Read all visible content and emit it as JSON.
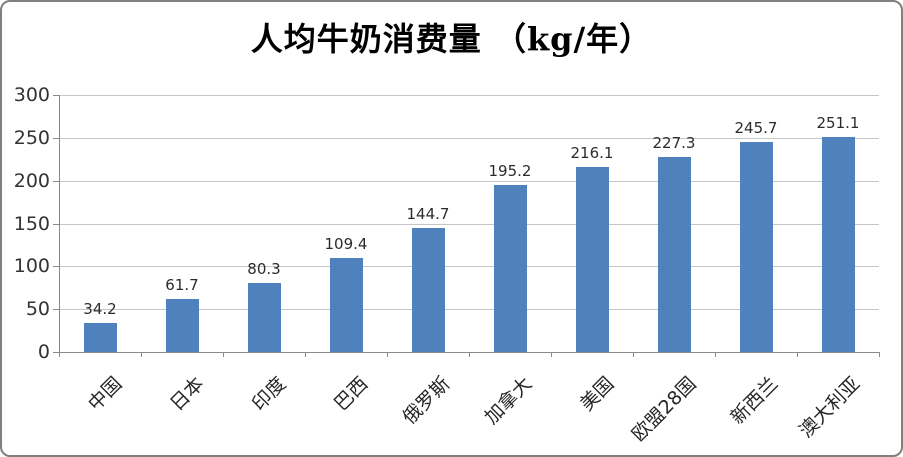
{
  "chart_data": {
    "type": "bar",
    "title": "人均牛奶消费量 （kg/年）",
    "categories": [
      "中国",
      "日本",
      "印度",
      "巴西",
      "俄罗斯",
      "加拿大",
      "美国",
      "欧盟28国",
      "新西兰",
      "澳大利亚"
    ],
    "values": [
      34.2,
      61.7,
      80.3,
      109.4,
      144.7,
      195.2,
      216.1,
      227.3,
      245.7,
      251.1
    ],
    "xlabel": "",
    "ylabel": "",
    "ylim": [
      0,
      300
    ],
    "ytick_step": 50,
    "grid": true,
    "legend_position": "none",
    "value_labels_shown": true,
    "bar_color": "#4F81BD",
    "gridline_color": "#C6C6C6",
    "axis_color": "#898989",
    "label_color": "#262626",
    "border_color": "#808080",
    "background_color": "#FFFFFF"
  }
}
